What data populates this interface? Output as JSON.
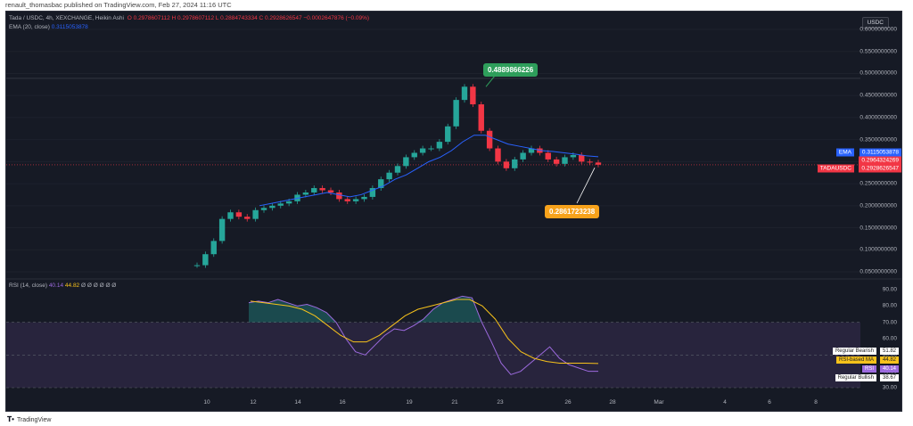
{
  "header": {
    "published": "renault_thomasbac published on TradingView.com, Feb 27, 2024 11:16 UTC"
  },
  "legend": {
    "symbol_line": "Tada / USDC, 4h, XEXCHANGE, Heikin Ashi",
    "ohlc": "O 0.2978607112  H 0.2978607112  L 0.2884743334  C 0.2928626547  −0.0002647876 (−0.09%)",
    "ema_label": "EMA (20, close)",
    "ema_value": "0.3115053878",
    "rsi_label": "RSI (14, close)",
    "rsi_value": "40.14",
    "rsi_ma_value": "44.82",
    "rsi_extra": "Ø Ø Ø Ø Ø Ø"
  },
  "quote_currency": "USDC",
  "price_axis": [
    "0.6000000000",
    "0.5500000000",
    "0.5000000000",
    "0.4500000000",
    "0.4000000000",
    "0.3500000000",
    "0.3000000000",
    "0.2500000000",
    "0.2000000000",
    "0.1500000000",
    "0.1000000000",
    "0.0500000000"
  ],
  "rsi_axis": [
    "90.00",
    "80.00",
    "70.00",
    "60.00",
    "50.00",
    "40.00",
    "30.00"
  ],
  "time_axis": [
    "10",
    "12",
    "14",
    "16",
    "19",
    "21",
    "23",
    "26",
    "28",
    "Mar",
    "4",
    "6",
    "8"
  ],
  "price_tags": {
    "ema": {
      "name": "EMA",
      "value": "0.3115053878",
      "color": "#2962ff"
    },
    "last": {
      "value": "0.2964324269",
      "color": "#f23645"
    },
    "symbol": {
      "name": "TADAUSDC",
      "value": "0.2928626547",
      "color": "#f23645"
    }
  },
  "callouts": {
    "high": {
      "value": "0.4889866226",
      "color": "#2e9e5b"
    },
    "low": {
      "value": "0.2861723238",
      "color": "#f7a21b"
    }
  },
  "rsi_tags": {
    "bearish": {
      "name": "Regular Bearish",
      "value": "51.82"
    },
    "ma": {
      "name": "RSI-based MA",
      "value": "44.82"
    },
    "rsi": {
      "name": "RSI",
      "value": "40.14"
    },
    "bullish": {
      "name": "Regular Bullish",
      "value": "38.67"
    }
  },
  "branding": {
    "logo_text": "TradingView"
  },
  "colors": {
    "up": "#26a69a",
    "down": "#f23645",
    "ema": "#2962ff",
    "rsi": "#9c6ade",
    "rsi_ma": "#f7c21b"
  },
  "chart_data": {
    "type": "candlestick",
    "interval": "4h",
    "price_ylim": [
      0.05,
      0.6
    ],
    "rsi_ylim": [
      30,
      90
    ],
    "close_path": [
      0.065,
      0.09,
      0.12,
      0.17,
      0.185,
      0.175,
      0.17,
      0.19,
      0.195,
      0.2,
      0.205,
      0.21,
      0.225,
      0.23,
      0.24,
      0.235,
      0.23,
      0.215,
      0.21,
      0.215,
      0.22,
      0.24,
      0.26,
      0.275,
      0.29,
      0.31,
      0.32,
      0.33,
      0.33,
      0.345,
      0.38,
      0.44,
      0.47,
      0.43,
      0.37,
      0.33,
      0.3,
      0.285,
      0.305,
      0.32,
      0.33,
      0.32,
      0.305,
      0.295,
      0.31,
      0.315,
      0.3,
      0.298,
      0.293
    ],
    "ema_path": [
      0.2,
      0.205,
      0.21,
      0.215,
      0.22,
      0.225,
      0.23,
      0.225,
      0.22,
      0.225,
      0.235,
      0.245,
      0.26,
      0.27,
      0.285,
      0.3,
      0.31,
      0.325,
      0.345,
      0.36,
      0.36,
      0.35,
      0.34,
      0.335,
      0.33,
      0.325,
      0.323,
      0.32,
      0.317,
      0.313,
      0.311
    ],
    "rsi_path": [
      82,
      83,
      82,
      84,
      82,
      80,
      81,
      79,
      76,
      70,
      60,
      52,
      50,
      56,
      62,
      66,
      65,
      68,
      72,
      78,
      82,
      84,
      86,
      85,
      70,
      58,
      45,
      38,
      40,
      45,
      50,
      55,
      48,
      44,
      42,
      40,
      40
    ],
    "rsi_ma_path": [
      83,
      82,
      81,
      80,
      78,
      74,
      68,
      62,
      58,
      58,
      62,
      68,
      74,
      78,
      80,
      82,
      84,
      84,
      80,
      72,
      60,
      52,
      48,
      46,
      45,
      45,
      45,
      44.82
    ]
  }
}
